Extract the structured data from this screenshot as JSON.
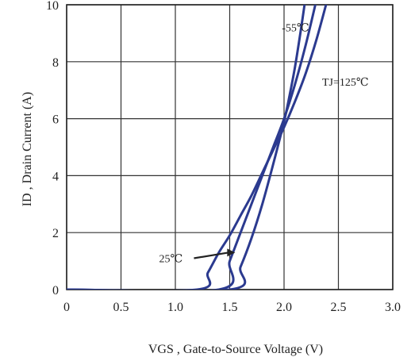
{
  "chart_data": {
    "type": "line",
    "xlabel": "VGS , Gate-to-Source  Voltage (V)",
    "ylabel": "ID , Drain  Current  (A)",
    "xlim": [
      0,
      3.0
    ],
    "ylim": [
      0,
      10
    ],
    "x_ticks": [
      0,
      0.5,
      1.0,
      1.5,
      2.0,
      2.5,
      3.0
    ],
    "x_tick_labels": [
      "0",
      "0.5",
      "1.0",
      "1.5",
      "2.0",
      "2.5",
      "3.0"
    ],
    "y_ticks": [
      0,
      2,
      4,
      6,
      8,
      10
    ],
    "y_tick_labels": [
      "0",
      "2",
      "4",
      "6",
      "8",
      "10"
    ],
    "grid": true,
    "line_color": "#2b3a8f",
    "series": [
      {
        "name": "-55℃",
        "x": [
          0,
          1.5,
          1.6,
          1.7,
          1.8,
          1.9,
          2.0,
          2.05,
          2.1,
          2.15,
          2.2
        ],
        "y": [
          0,
          0,
          0.8,
          1.8,
          3.0,
          4.4,
          5.9,
          6.8,
          7.8,
          9.0,
          10.3
        ]
      },
      {
        "name": "25℃",
        "x": [
          0,
          1.4,
          1.5,
          1.6,
          1.7,
          1.8,
          1.9,
          2.0,
          2.1,
          2.2,
          2.3
        ],
        "y": [
          0,
          0,
          1.0,
          2.0,
          3.0,
          4.0,
          5.0,
          6.0,
          7.2,
          8.6,
          10.2
        ]
      },
      {
        "name": "T₁=125℃",
        "x": [
          0,
          1.2,
          1.3,
          1.4,
          1.5,
          1.6,
          1.7,
          1.8,
          1.9,
          2.0,
          2.1,
          2.2,
          2.3,
          2.4
        ],
        "y": [
          0,
          0,
          0.6,
          1.3,
          1.9,
          2.6,
          3.3,
          4.1,
          4.9,
          5.7,
          6.6,
          7.6,
          8.8,
          10.2
        ]
      }
    ],
    "annotations": [
      {
        "text": "-55℃",
        "x": 1.98,
        "y": 9.2
      },
      {
        "text": "TJ=125℃",
        "x": 2.35,
        "y": 7.3
      },
      {
        "text": "25℃",
        "x": 0.85,
        "y": 1.1,
        "arrow_to": [
          1.55,
          1.3
        ]
      }
    ]
  }
}
